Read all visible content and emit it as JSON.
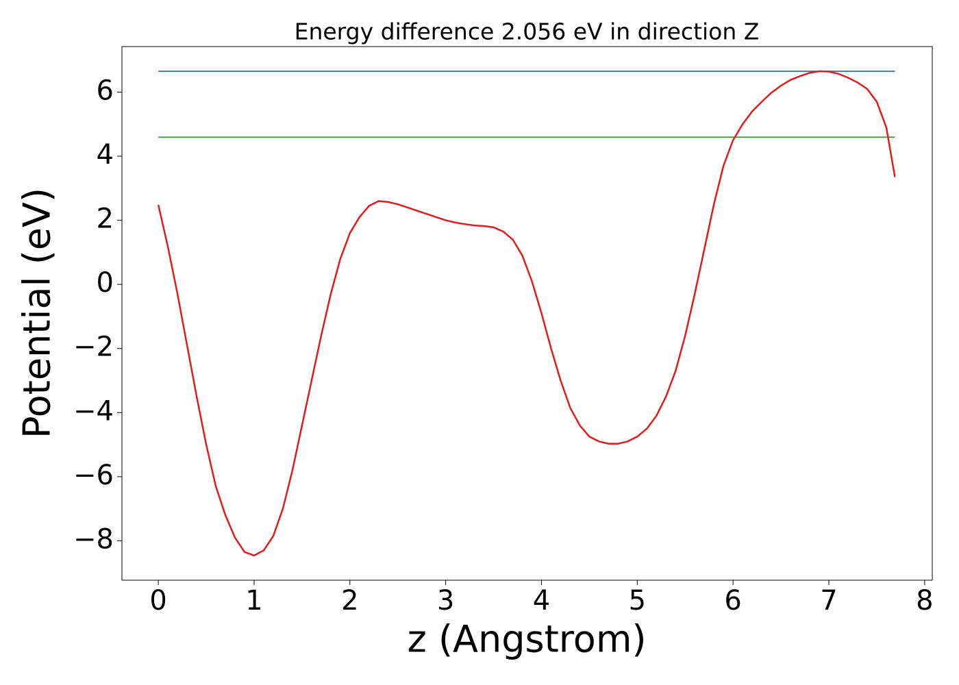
{
  "chart_data": {
    "type": "line",
    "title": "Energy difference 2.056 eV in direction Z",
    "x_label": "z (Angstrom)",
    "y_label": "Potential (eV)",
    "xlim": [
      -0.38,
      8.08
    ],
    "ylim": [
      -9.23,
      7.42
    ],
    "xticks": [
      0,
      1,
      2,
      3,
      4,
      5,
      6,
      7,
      8
    ],
    "yticks": [
      {
        "value": -8,
        "label": "−8"
      },
      {
        "value": -6,
        "label": "−6"
      },
      {
        "value": -4,
        "label": "−4"
      },
      {
        "value": -2,
        "label": "−2"
      },
      0,
      2,
      4,
      6
    ],
    "series": [
      {
        "color": "#1f77b4",
        "x": [
          0,
          7.69
        ],
        "values": [
          6.65,
          6.65
        ]
      },
      {
        "color": "#2ca02c",
        "x": [
          0,
          7.69
        ],
        "values": [
          4.594,
          4.594
        ]
      },
      {
        "color": "#e41a1c",
        "x": [
          0,
          0.1,
          0.2,
          0.3,
          0.4,
          0.5,
          0.6,
          0.7,
          0.8,
          0.9,
          1.0,
          1.1,
          1.2,
          1.3,
          1.4,
          1.5,
          1.6,
          1.7,
          1.8,
          1.9,
          2.0,
          2.1,
          2.2,
          2.3,
          2.4,
          2.5,
          2.6,
          2.7,
          2.8,
          2.9,
          3.0,
          3.1,
          3.2,
          3.3,
          3.4,
          3.5,
          3.6,
          3.7,
          3.8,
          3.9,
          4.0,
          4.1,
          4.2,
          4.3,
          4.4,
          4.5,
          4.6,
          4.7,
          4.8,
          4.9,
          5.0,
          5.1,
          5.2,
          5.3,
          5.4,
          5.5,
          5.6,
          5.7,
          5.8,
          5.9,
          6.0,
          6.1,
          6.2,
          6.3,
          6.4,
          6.5,
          6.6,
          6.7,
          6.8,
          6.9,
          7.0,
          7.1,
          7.2,
          7.3,
          7.4,
          7.5,
          7.6,
          7.69
        ],
        "values": [
          2.48,
          1.17,
          -0.3,
          -1.9,
          -3.5,
          -5.0,
          -6.3,
          -7.2,
          -7.9,
          -8.35,
          -8.46,
          -8.3,
          -7.85,
          -7.0,
          -5.8,
          -4.4,
          -3.0,
          -1.6,
          -0.3,
          0.8,
          1.6,
          2.1,
          2.45,
          2.6,
          2.57,
          2.5,
          2.4,
          2.3,
          2.2,
          2.1,
          2.0,
          1.93,
          1.88,
          1.84,
          1.82,
          1.78,
          1.65,
          1.4,
          0.9,
          0.1,
          -0.9,
          -2.0,
          -3.0,
          -3.85,
          -4.4,
          -4.75,
          -4.9,
          -4.97,
          -4.97,
          -4.9,
          -4.75,
          -4.5,
          -4.1,
          -3.5,
          -2.7,
          -1.6,
          -0.3,
          1.1,
          2.5,
          3.7,
          4.5,
          5.0,
          5.4,
          5.7,
          5.98,
          6.2,
          6.38,
          6.5,
          6.6,
          6.65,
          6.64,
          6.57,
          6.45,
          6.3,
          6.1,
          5.7,
          4.9,
          3.35
        ]
      }
    ]
  }
}
